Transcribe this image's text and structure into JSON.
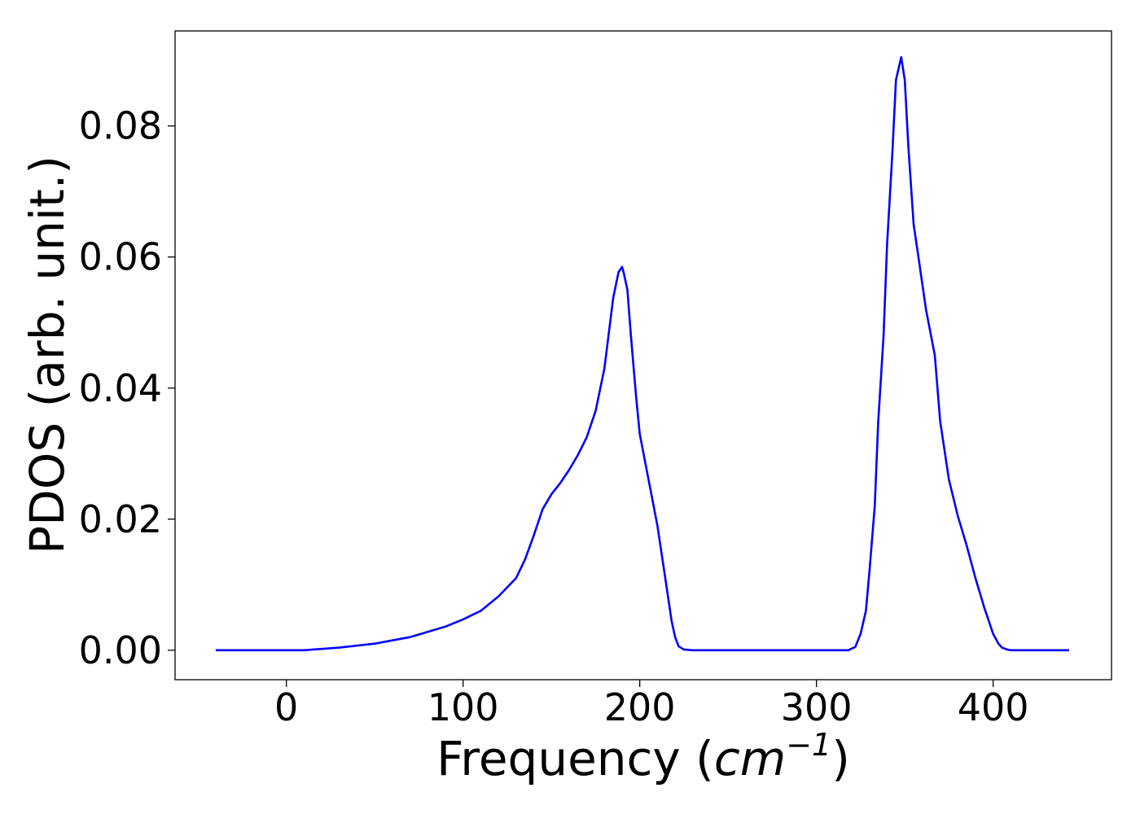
{
  "chart_data": {
    "type": "line",
    "title": "",
    "xlabel": "Frequency",
    "xlabel_unit_base": "cm",
    "xlabel_unit_exp": "−1",
    "ylabel": "PDOS (arb. unit.)",
    "xlim": [
      -63,
      467
    ],
    "ylim": [
      -0.0045,
      0.0945
    ],
    "xticks": [
      0,
      100,
      200,
      300,
      400
    ],
    "xtick_labels": [
      "0",
      "100",
      "200",
      "300",
      "400"
    ],
    "yticks": [
      0.0,
      0.02,
      0.04,
      0.06,
      0.08
    ],
    "ytick_labels": [
      "0.00",
      "0.02",
      "0.04",
      "0.06",
      "0.08"
    ],
    "grid": false,
    "line_color": "#0000ff",
    "series": [
      {
        "x": [
          -40,
          0,
          10,
          20,
          30,
          40,
          50,
          60,
          70,
          80,
          90,
          100,
          110,
          120,
          130,
          135,
          140,
          145,
          150,
          155,
          160,
          165,
          170,
          175,
          180,
          185,
          188,
          190,
          191,
          193,
          195,
          198,
          200,
          205,
          210,
          215,
          218,
          220,
          222,
          225,
          230,
          240,
          280,
          318,
          322,
          325,
          328,
          330,
          333,
          335,
          338,
          340,
          343,
          345,
          348,
          350,
          352,
          355,
          358,
          362,
          367,
          370,
          375,
          380,
          385,
          390,
          395,
          400,
          403,
          405,
          408,
          410,
          415,
          420,
          443
        ],
        "y": [
          0.0,
          0.0,
          0.0,
          0.0002,
          0.0004,
          0.0007,
          0.001,
          0.0015,
          0.002,
          0.0028,
          0.0036,
          0.0047,
          0.006,
          0.0082,
          0.011,
          0.0138,
          0.0175,
          0.0215,
          0.0238,
          0.0255,
          0.0275,
          0.0298,
          0.0325,
          0.0365,
          0.043,
          0.0538,
          0.0577,
          0.0585,
          0.0575,
          0.055,
          0.048,
          0.0385,
          0.033,
          0.026,
          0.019,
          0.01,
          0.0045,
          0.002,
          0.0006,
          0.0001,
          0.0,
          0.0,
          0.0,
          0.0,
          0.0005,
          0.0025,
          0.006,
          0.012,
          0.022,
          0.035,
          0.048,
          0.062,
          0.076,
          0.087,
          0.0905,
          0.087,
          0.077,
          0.065,
          0.0595,
          0.052,
          0.045,
          0.035,
          0.026,
          0.0205,
          0.016,
          0.011,
          0.0065,
          0.0025,
          0.001,
          0.0004,
          0.0001,
          0.0,
          0.0,
          0.0,
          0.0
        ]
      }
    ]
  }
}
